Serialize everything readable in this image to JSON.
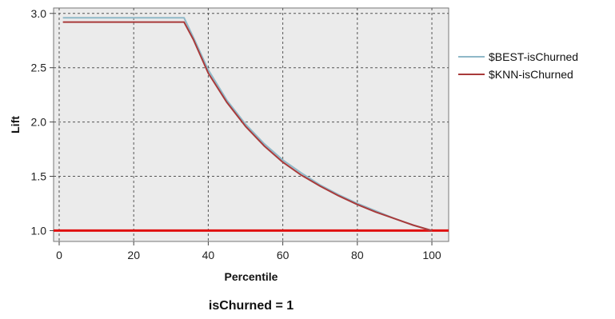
{
  "chart_data": {
    "type": "line",
    "xlabel": "Percentile",
    "ylabel": "Lift",
    "subtitle": "isChurned = 1",
    "xlim": [
      -1.5,
      104.5
    ],
    "ylim": [
      0.9,
      3.05
    ],
    "x_ticks": [
      0,
      20,
      40,
      60,
      80,
      100
    ],
    "y_ticks": [
      1.0,
      1.5,
      2.0,
      2.5,
      3.0
    ],
    "x_tick_labels": [
      "0",
      "20",
      "40",
      "60",
      "80",
      "100"
    ],
    "y_tick_labels": [
      "1.0",
      "1.5",
      "2.0",
      "2.5",
      "3.0"
    ],
    "grid": true,
    "legend_position": "right",
    "baseline": {
      "value": 1.0,
      "color": "#e01010"
    },
    "series": [
      {
        "name": "$BEST-isChurned",
        "color": "#8fb8c8",
        "x": [
          1,
          10,
          20,
          30,
          33.5,
          36,
          40,
          45,
          50,
          55,
          60,
          65,
          70,
          75,
          80,
          85,
          90,
          95,
          100
        ],
        "y": [
          2.96,
          2.96,
          2.96,
          2.96,
          2.96,
          2.78,
          2.48,
          2.2,
          1.98,
          1.8,
          1.65,
          1.53,
          1.42,
          1.33,
          1.25,
          1.18,
          1.11,
          1.05,
          1.0
        ]
      },
      {
        "name": "$KNN-isChurned",
        "color": "#a83a3a",
        "x": [
          1,
          10,
          20,
          30,
          33.5,
          36,
          40,
          45,
          50,
          55,
          60,
          65,
          70,
          75,
          80,
          85,
          90,
          95,
          100
        ],
        "y": [
          2.92,
          2.92,
          2.92,
          2.92,
          2.92,
          2.76,
          2.45,
          2.18,
          1.96,
          1.78,
          1.63,
          1.51,
          1.41,
          1.32,
          1.24,
          1.17,
          1.11,
          1.05,
          1.0
        ]
      }
    ]
  }
}
